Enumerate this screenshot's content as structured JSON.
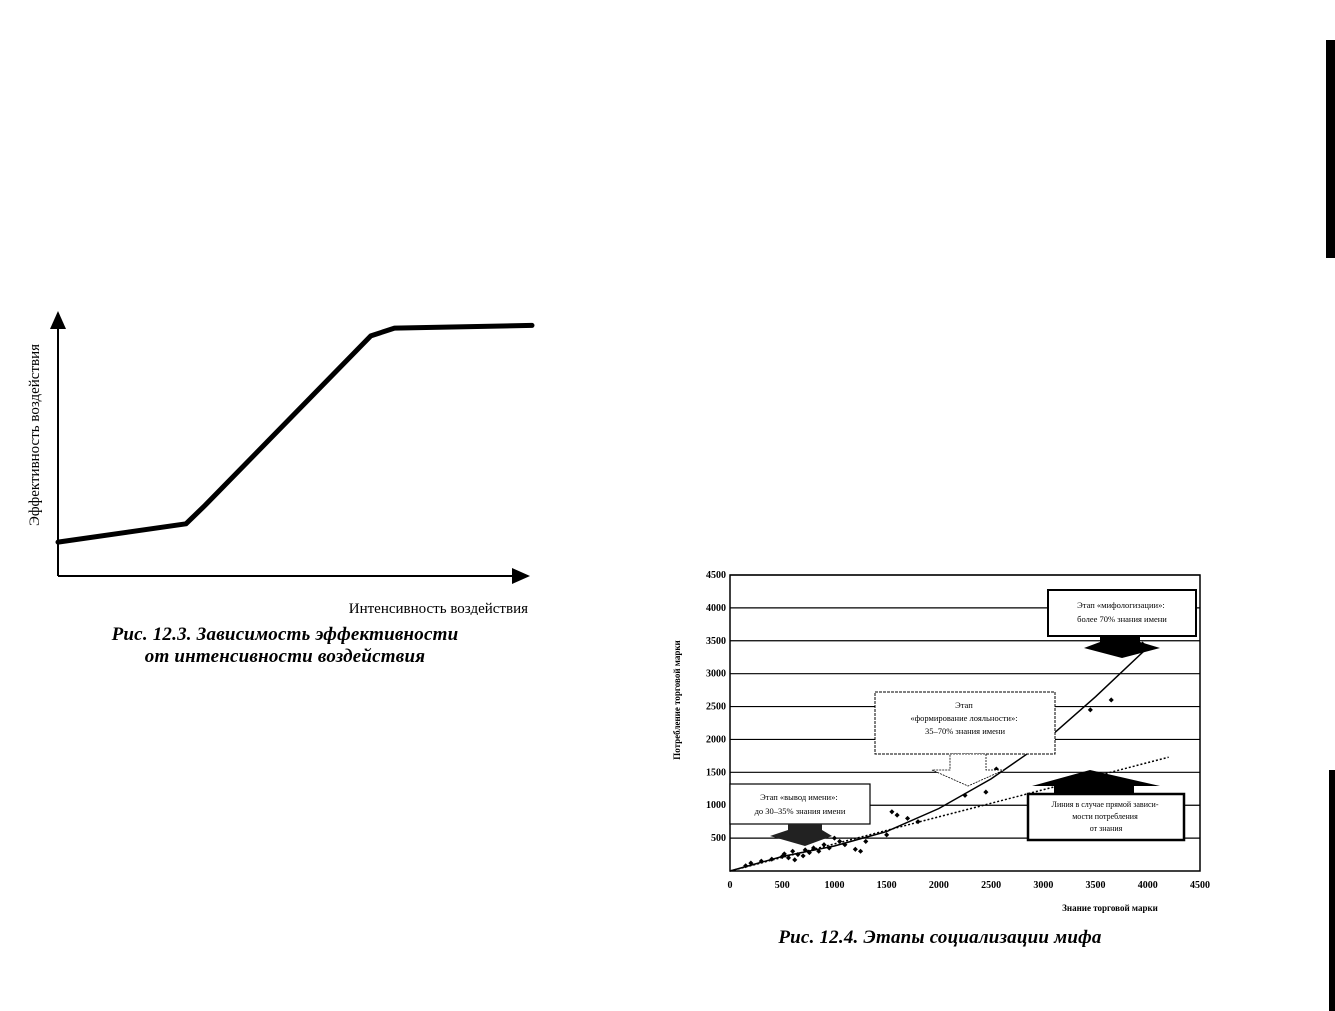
{
  "figure_1": {
    "caption_line1": "Рис. 12.3. Зависимость эффективности",
    "caption_line2": "от интенсивности воздействия"
  },
  "figure_2": {
    "caption": "Рис. 12.4. Этапы социализации мифа",
    "annotations": {
      "stage_myth": [
        "Этап «мифологизации»:",
        "более 70% знания имени"
      ],
      "stage_loyalty": [
        "Этап",
        "«формирование лояльности»:",
        "35–70% знания имени"
      ],
      "stage_launch": [
        "Этап «вывод имени»:",
        "до 30–35% знания имени"
      ],
      "direct_line": [
        "Линия в случае прямой зависи-",
        "мости потребления",
        "от знания"
      ]
    }
  },
  "chart_data": [
    {
      "type": "line",
      "title": "",
      "xlabel": "Интенсивность воздействия",
      "ylabel": "Эффективность воздействия",
      "axes_ticks": false,
      "grid": false,
      "series": [
        {
          "x": [
            0,
            0.27,
            0.31,
            0.66,
            0.71,
            1.0
          ],
          "y": [
            0.13,
            0.2,
            0.27,
            0.92,
            0.95,
            0.96
          ]
        }
      ]
    },
    {
      "type": "scatter",
      "title": "",
      "xlabel": "Знание торговой марки",
      "ylabel": "Потребление торговой марки",
      "xlim": [
        0,
        4500
      ],
      "ylim": [
        0,
        4500
      ],
      "x_ticks": [
        0,
        500,
        1000,
        1500,
        2000,
        2500,
        3000,
        3500,
        4000,
        4500
      ],
      "y_ticks": [
        500,
        1000,
        1500,
        2000,
        2500,
        3000,
        3500,
        4000,
        4500
      ],
      "grid": "horizontal",
      "points": {
        "x": [
          150,
          200,
          300,
          400,
          500,
          520,
          560,
          600,
          620,
          650,
          700,
          720,
          760,
          800,
          850,
          900,
          950,
          1000,
          1050,
          1100,
          1200,
          1250,
          1300,
          1500,
          1550,
          1600,
          1700,
          1800,
          2250,
          2450,
          2550,
          3050,
          3450,
          3650,
          3950
        ],
        "y": [
          80,
          120,
          150,
          180,
          220,
          260,
          200,
          300,
          170,
          250,
          230,
          320,
          280,
          350,
          300,
          400,
          350,
          500,
          450,
          400,
          330,
          300,
          450,
          550,
          900,
          850,
          800,
          750,
          1150,
          1200,
          1550,
          1850,
          2450,
          2600,
          3450
        ]
      },
      "trend_curve": {
        "x": [
          0,
          500,
          1000,
          1500,
          2000,
          2500,
          3000,
          3500,
          4000
        ],
        "y": [
          0,
          220,
          380,
          600,
          950,
          1400,
          1950,
          2650,
          3400
        ]
      },
      "direct_line": {
        "x": [
          0,
          4200
        ],
        "y": [
          0,
          1730
        ]
      }
    }
  ]
}
